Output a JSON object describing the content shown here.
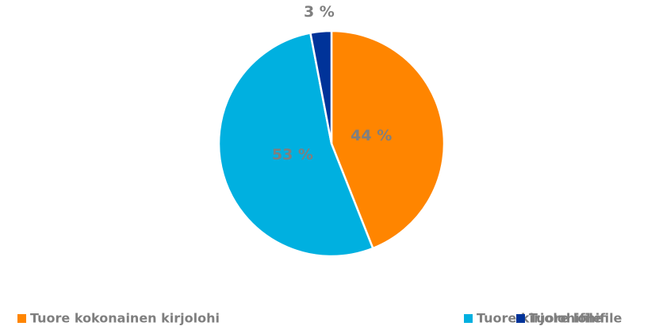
{
  "chart_data": {
    "type": "pie",
    "categories": [
      "Tuore kokonainen kirjolohi",
      "Tuore kirjolohifile",
      "Tuore lohifile"
    ],
    "values": [
      44,
      53,
      3
    ],
    "value_labels": [
      "44 %",
      "53 %",
      "3 %"
    ],
    "colors": [
      "#ff8500",
      "#00b0e0",
      "#003399"
    ],
    "legend": "bottom"
  }
}
